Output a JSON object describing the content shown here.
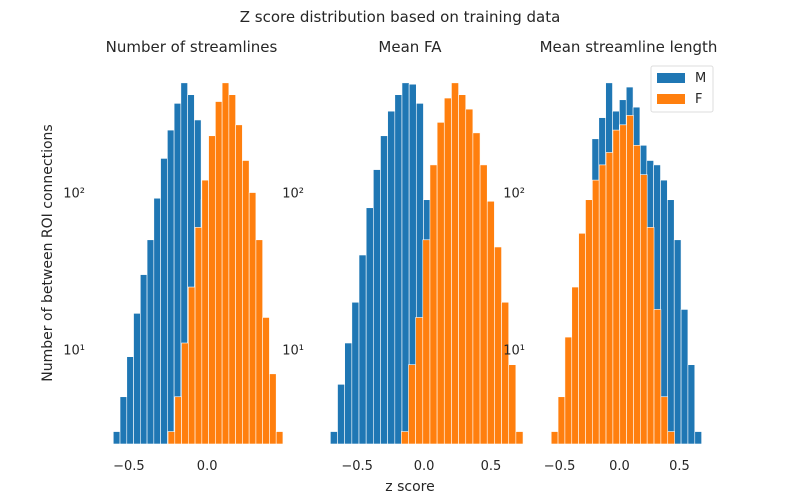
{
  "figure": {
    "suptitle": "Z score distribution based on training data",
    "xlabel": "z score",
    "ylabel": "Number of between ROI connections"
  },
  "colors": {
    "M": "#1f77b4",
    "F": "#ff7f0e",
    "bar_edge": "#ffffff",
    "background": "#ffffff",
    "text": "#262626"
  },
  "chart_data": [
    {
      "type": "bar",
      "subtype": "histogram",
      "title": "Number of streamlines",
      "yscale": "log",
      "grid": false,
      "xlim": [
        -0.64,
        0.44
      ],
      "ylim": [
        2.5,
        640
      ],
      "xticks": [
        -0.5,
        0.0
      ],
      "xtick_labels": [
        "−0.5",
        "0.0"
      ],
      "yticks": [
        10,
        100
      ],
      "ytick_labels": [
        "10",
        "100"
      ],
      "bin_width": 0.0432,
      "series": [
        {
          "name": "M",
          "bin_start": -0.6,
          "values": [
            3,
            5,
            9,
            17,
            30,
            50,
            92,
            165,
            250,
            370,
            500,
            420,
            290,
            90,
            13,
            3
          ]
        },
        {
          "name": "F",
          "bin_start": -0.25,
          "values": [
            3,
            5,
            11,
            25,
            60,
            120,
            230,
            380,
            500,
            420,
            270,
            160,
            100,
            50,
            16,
            7,
            3
          ]
        }
      ]
    },
    {
      "type": "bar",
      "subtype": "histogram",
      "title": "Mean FA",
      "yscale": "log",
      "grid": false,
      "xlim": [
        -0.74,
        0.53
      ],
      "ylim": [
        2.5,
        640
      ],
      "xticks": [
        -0.5,
        0.0,
        0.5
      ],
      "xtick_labels": [
        "−0.5",
        "0.0",
        "0.5"
      ],
      "yticks": [
        10,
        100
      ],
      "ytick_labels": [
        "10",
        "100"
      ],
      "bin_width": 0.0535,
      "series": [
        {
          "name": "M",
          "bin_start": -0.7,
          "values": [
            3,
            6,
            11,
            20,
            40,
            80,
            140,
            230,
            330,
            420,
            500,
            490,
            370,
            90,
            14,
            3
          ]
        },
        {
          "name": "F",
          "bin_start": -0.17,
          "values": [
            3,
            8,
            16,
            50,
            150,
            280,
            400,
            500,
            420,
            340,
            240,
            150,
            88,
            45,
            20,
            8,
            3
          ]
        }
      ]
    },
    {
      "type": "bar",
      "subtype": "histogram",
      "title": "Mean streamline length",
      "yscale": "log",
      "grid": false,
      "xlim": [
        -0.63,
        0.78
      ],
      "ylim": [
        2.5,
        640
      ],
      "xticks": [
        -0.5,
        0.0,
        0.5
      ],
      "xtick_labels": [
        "−0.5",
        "0.0",
        "0.5"
      ],
      "yticks": [
        10,
        100
      ],
      "ytick_labels": [
        "10",
        "100"
      ],
      "bin_width": 0.0572,
      "legend": {
        "loc": "upper right",
        "entries": [
          "M",
          "F"
        ]
      },
      "series": [
        {
          "name": "M",
          "bin_start": -0.23,
          "values": [
            220,
            300,
            500,
            330,
            390,
            470,
            350,
            200,
            160,
            150,
            120,
            90,
            50,
            18,
            8,
            3
          ]
        },
        {
          "name": "F",
          "bin_start": -0.57,
          "values": [
            3,
            5,
            12,
            25,
            55,
            90,
            120,
            150,
            180,
            250,
            270,
            310,
            200,
            130,
            60,
            18,
            5,
            3
          ]
        }
      ]
    }
  ]
}
